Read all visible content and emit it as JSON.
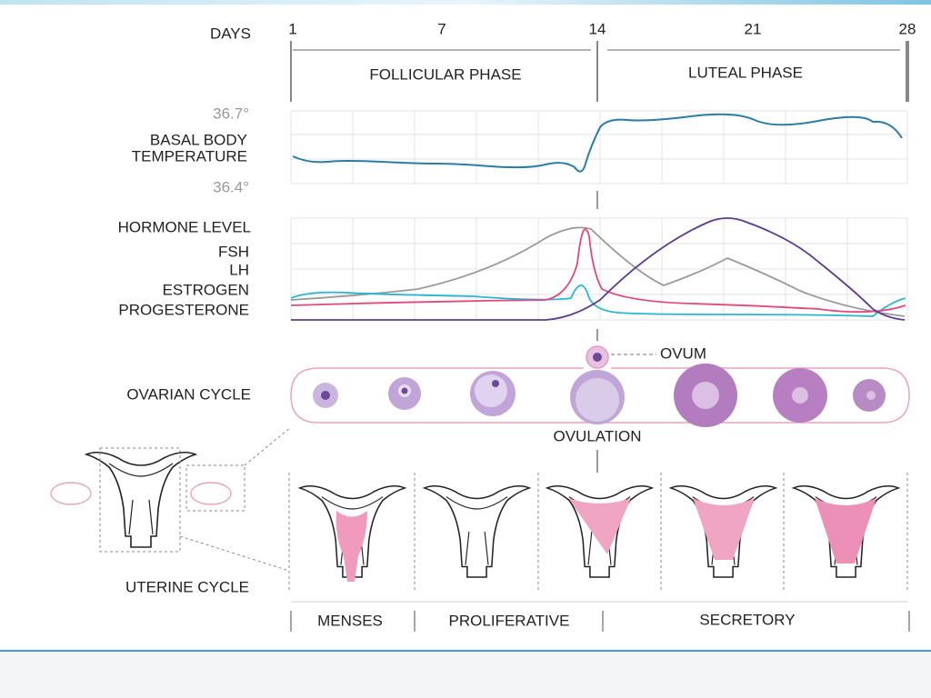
{
  "header": {
    "days_label": "DAYS",
    "days": [
      "1",
      "7",
      "14",
      "21",
      "28"
    ]
  },
  "phases": [
    "FOLLICULAR PHASE",
    "LUTEAL PHASE"
  ],
  "temperature": {
    "high": "36.7°",
    "label": [
      "BASAL BODY",
      "TEMPERATURE"
    ],
    "low": "36.4°",
    "color": "#2b7da6"
  },
  "hormones": {
    "title": "HORMONE LEVEL",
    "legend": [
      {
        "name": "FSH",
        "color": "#29b6d1"
      },
      {
        "name": "LH",
        "color": "#e0487f"
      },
      {
        "name": "ESTROGEN",
        "color": "#9a9a9a"
      },
      {
        "name": "PROGESTERONE",
        "color": "#5b3c8f"
      }
    ]
  },
  "ovarian": {
    "label": "OVARIAN CYCLE",
    "ovum": "OVUM",
    "ovulation": "OVULATION"
  },
  "uterine": {
    "label": "UTERINE CYCLE",
    "phases": [
      "MENSES",
      "PROLIFERATIVE",
      "SECRETORY"
    ]
  }
}
